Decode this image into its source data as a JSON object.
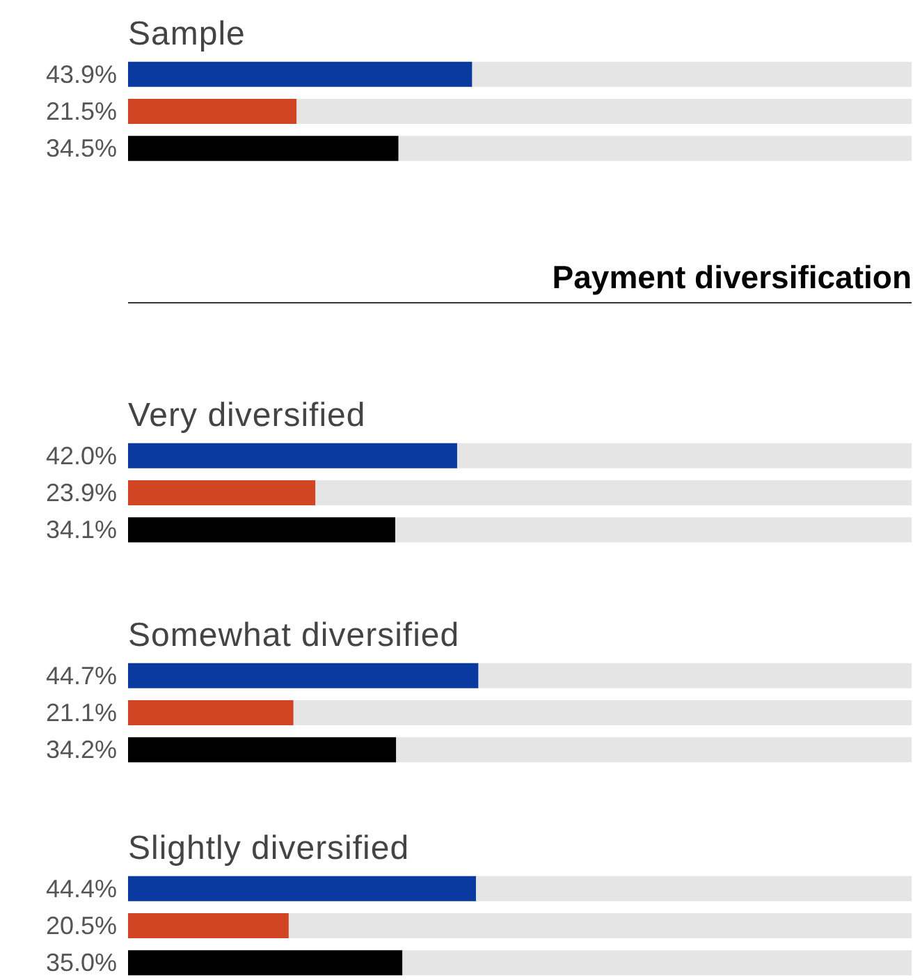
{
  "chart_data": [
    {
      "type": "bar",
      "orientation": "horizontal",
      "title": "Sample",
      "categories": [
        null,
        null,
        null
      ],
      "values": [
        43.9,
        21.5,
        34.5
      ],
      "colors": [
        "#0a3aa0",
        "#d24524",
        "#000000"
      ],
      "value_labels": [
        "43.9%",
        "21.5%",
        "34.5%"
      ],
      "xlim": [
        0,
        100
      ]
    },
    {
      "type": "bar",
      "orientation": "horizontal",
      "title": "Very diversified",
      "annotations": [
        "Payment diversification"
      ],
      "categories": [
        null,
        null,
        null
      ],
      "values": [
        42.0,
        23.9,
        34.1
      ],
      "colors": [
        "#0a3aa0",
        "#d24524",
        "#000000"
      ],
      "value_labels": [
        "42.0%",
        "23.9%",
        "34.1%"
      ],
      "xlim": [
        0,
        100
      ]
    },
    {
      "type": "bar",
      "orientation": "horizontal",
      "title": "Somewhat diversified",
      "categories": [
        null,
        null,
        null
      ],
      "values": [
        44.7,
        21.1,
        34.2
      ],
      "colors": [
        "#0a3aa0",
        "#d24524",
        "#000000"
      ],
      "value_labels": [
        "44.7%",
        "21.1%",
        "34.2%"
      ],
      "xlim": [
        0,
        100
      ]
    },
    {
      "type": "bar",
      "orientation": "horizontal",
      "title": "Slightly diversified",
      "categories": [
        null,
        null,
        null
      ],
      "values": [
        44.4,
        20.5,
        35.0
      ],
      "colors": [
        "#0a3aa0",
        "#d24524",
        "#000000"
      ],
      "value_labels": [
        "44.4%",
        "20.5%",
        "35.0%"
      ],
      "xlim": [
        0,
        100
      ]
    }
  ]
}
